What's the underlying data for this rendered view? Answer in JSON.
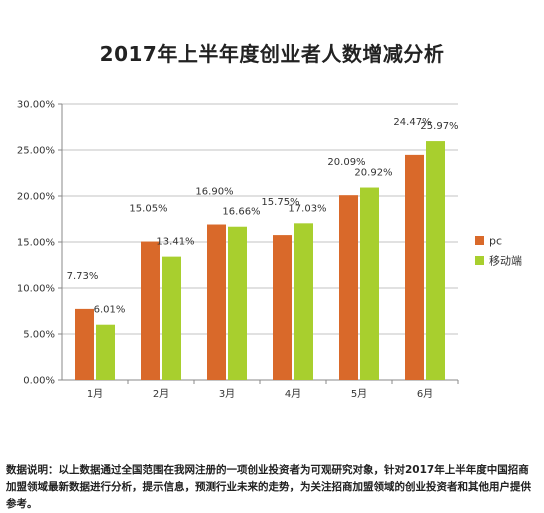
{
  "chart_data": {
    "type": "bar",
    "title": "2017年上半年度创业者人数增减分析",
    "categories": [
      "1月",
      "2月",
      "3月",
      "4月",
      "5月",
      "6月"
    ],
    "series": [
      {
        "name": "pc",
        "values": [
          7.73,
          15.05,
          16.9,
          15.75,
          20.09,
          24.47
        ],
        "labels": [
          "7.73%",
          "15.05%",
          "16.90%",
          "15.75%",
          "20.09%",
          "24.47%"
        ]
      },
      {
        "name": "移动端",
        "values": [
          6.01,
          13.41,
          16.66,
          17.03,
          20.92,
          25.97
        ],
        "labels": [
          "6.01%",
          "13.41%",
          "16.66%",
          "17.03%",
          "20.92%",
          "25.97%"
        ]
      }
    ],
    "yticks": [
      "0.00%",
      "5.00%",
      "10.00%",
      "15.00%",
      "20.00%",
      "25.00%",
      "30.00%"
    ],
    "ylim": [
      0,
      30
    ],
    "legend_position": "right",
    "colors": {
      "pc": "#d9692a",
      "mobile": "#a8cf2e",
      "axis": "#888888",
      "grid": "#888888"
    }
  },
  "note": "数据说明：以上数据通过全国范围在我网注册的一项创业投资者为可观研究对象，针对2017年上半年度中国招商加盟领域最新数据进行分析，提示信息，预测行业未来的走势，为关注招商加盟领域的创业投资者和其他用户提供参考。"
}
